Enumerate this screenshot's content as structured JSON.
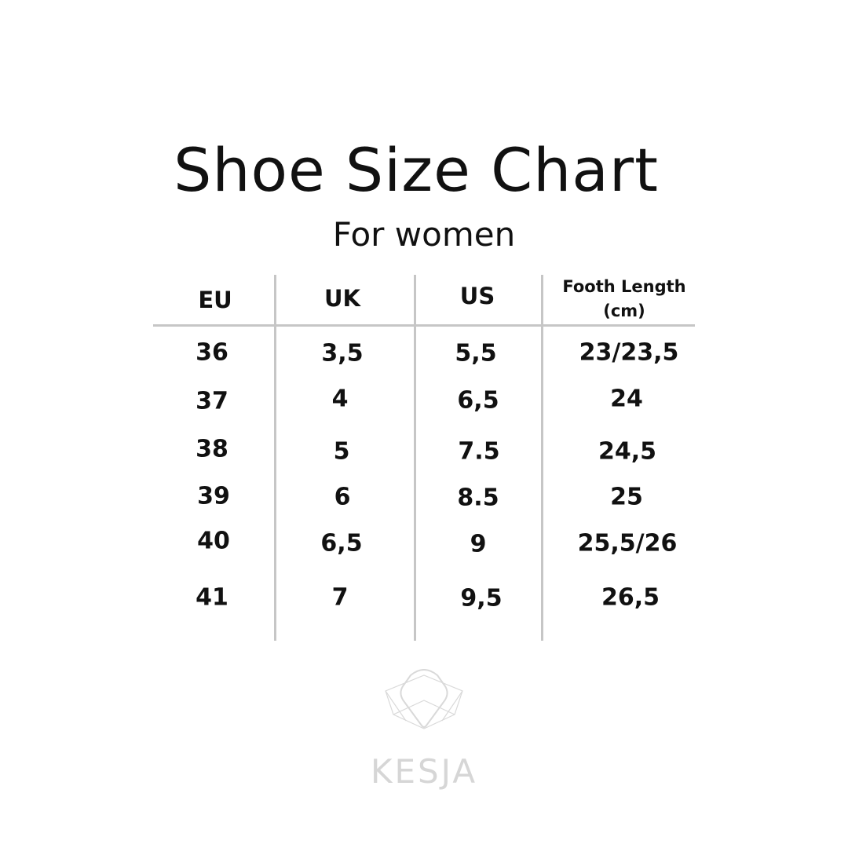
{
  "title": "Shoe Size Chart",
  "subtitle": "For women",
  "table": {
    "headers": [
      "EU",
      "UK",
      "US",
      "Footh Length\n(cm)"
    ],
    "header_line1": "Footh Length",
    "header_line2": "(cm)",
    "rows": [
      [
        "36",
        "3,5",
        "5,5",
        "23/23,5"
      ],
      [
        "37",
        "4",
        "6,5",
        "24"
      ],
      [
        "38",
        "5",
        "7.5",
        "24,5"
      ],
      [
        "39",
        "6",
        "8.5",
        "25"
      ],
      [
        "40",
        "6,5",
        "9",
        "25,5/26"
      ],
      [
        "41",
        "7",
        "9,5",
        "26,5"
      ]
    ]
  },
  "brand": {
    "name": "KESJA",
    "logo_icon": "kesja-logo-icon",
    "color": "#d6d6d6"
  },
  "colors": {
    "text": "#111111",
    "grid": "#c6c6c6"
  }
}
